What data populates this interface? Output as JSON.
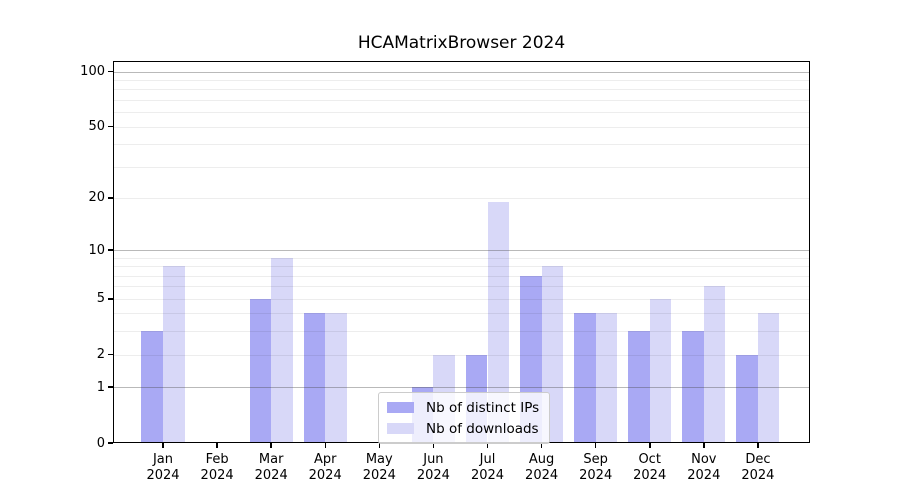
{
  "title": "HCAMatrixBrowser 2024",
  "chart_data": {
    "type": "bar",
    "title": "HCAMatrixBrowser 2024",
    "categories": [
      "Jan 2024",
      "Feb 2024",
      "Mar 2024",
      "Apr 2024",
      "May 2024",
      "Jun 2024",
      "Jul 2024",
      "Aug 2024",
      "Sep 2024",
      "Oct 2024",
      "Nov 2024",
      "Dec 2024"
    ],
    "series": [
      {
        "name": "Nb of distinct IPs",
        "color": "#a9a9f4",
        "values": [
          3,
          0,
          5,
          4,
          0,
          1,
          2,
          7,
          4,
          3,
          3,
          2
        ]
      },
      {
        "name": "Nb of downloads",
        "color": "#d8d8f8",
        "values": [
          8,
          0,
          9,
          4,
          0,
          2,
          19,
          8,
          4,
          5,
          6,
          4
        ]
      }
    ],
    "xlabel": "",
    "ylabel": "",
    "yscale": "log1p",
    "ylim": [
      0,
      114
    ],
    "yticks": [
      0,
      1,
      2,
      5,
      10,
      20,
      50,
      100
    ],
    "major_gridlines": [
      1,
      10,
      100
    ],
    "minor_gridlines": [
      2,
      3,
      4,
      5,
      6,
      7,
      8,
      9,
      20,
      30,
      40,
      50,
      60,
      70,
      80,
      90
    ],
    "grid": true,
    "legend_position": "lower center",
    "bar_group": "side-by-side"
  },
  "legend": {
    "items": [
      {
        "label": "Nb of distinct IPs",
        "color": "#a9a9f4"
      },
      {
        "label": "Nb of downloads",
        "color": "#d8d8f8"
      }
    ]
  },
  "colors": {
    "distinct_ips": "#a9a9f4",
    "downloads": "#d8d8f8",
    "axis": "#000000",
    "major_grid": "#b5b5b5",
    "minor_grid": "#ededed",
    "background": "#ffffff"
  }
}
